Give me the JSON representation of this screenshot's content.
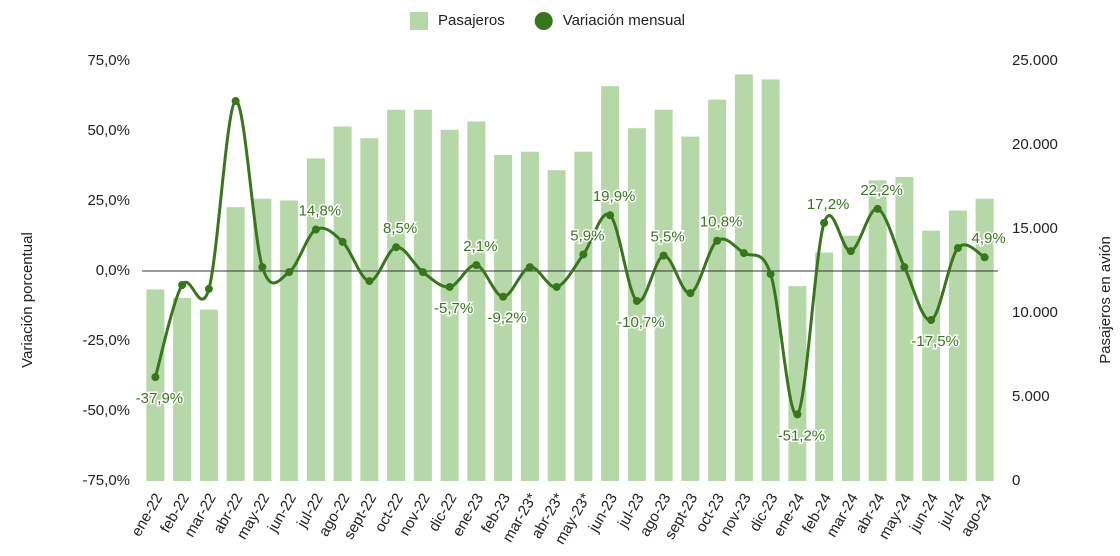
{
  "chart_data": {
    "type": "bar_line",
    "y_label": "Variación porcentual",
    "y2_label": "Pasajeros en avión",
    "categories": [
      "ene-22",
      "feb-22",
      "mar-22",
      "abr-22",
      "may-22",
      "jun-22",
      "jul-22",
      "ago-22",
      "sept-22",
      "oct-22",
      "nov-22",
      "dic-22",
      "ene-23",
      "feb-23",
      "mar-23*",
      "abr-23*",
      "may-23*",
      "jun-23",
      "jul-23",
      "ago-23",
      "sept-23",
      "oct-23",
      "nov-23",
      "dic-23",
      "ene-24",
      "feb-24",
      "mar-24",
      "abr-24",
      "may-24",
      "jun-24",
      "jul-24",
      "ago-24"
    ],
    "series": [
      {
        "name": "Pasajeros",
        "type": "bar",
        "axis": "y2",
        "color": "#b6d7a8",
        "values": [
          11400,
          10900,
          10200,
          16300,
          16800,
          16700,
          19200,
          21100,
          20400,
          22100,
          22100,
          20900,
          21400,
          19400,
          19600,
          18500,
          19600,
          23500,
          21000,
          22100,
          20500,
          22700,
          24200,
          23900,
          11600,
          13600,
          14600,
          17900,
          18100,
          14900,
          16100,
          16800
        ]
      },
      {
        "name": "Variación mensual",
        "type": "line",
        "axis": "y",
        "color": "#38761d",
        "values": [
          -37.9,
          -5.0,
          -6.4,
          60.7,
          1.4,
          -0.4,
          14.8,
          10.4,
          -3.6,
          8.5,
          -0.4,
          -5.7,
          2.1,
          -9.2,
          1.4,
          -5.7,
          5.9,
          19.9,
          -10.7,
          5.5,
          -7.9,
          10.8,
          6.4,
          -1.1,
          -51.2,
          17.2,
          7.1,
          22.2,
          1.4,
          -17.5,
          8.2,
          4.9
        ],
        "value_labels": [
          "-37,9%",
          null,
          null,
          null,
          null,
          null,
          "14,8%",
          null,
          null,
          "8,5%",
          null,
          "-5,7%",
          "2,1%",
          "-9,2%",
          null,
          null,
          "5,9%",
          "19,9%",
          "-10,7%",
          "5,5%",
          null,
          "10,8%",
          null,
          null,
          "-51,2%",
          "17,2%",
          null,
          "22,2%",
          null,
          "-17,5%",
          null,
          "4,9%"
        ]
      }
    ],
    "ylim": [
      -75,
      75
    ],
    "yticks": [
      {
        "value": -75,
        "label": "-75,0%"
      },
      {
        "value": -50,
        "label": "-50,0%"
      },
      {
        "value": -25,
        "label": "-25,0%"
      },
      {
        "value": 0,
        "label": "0,0%"
      },
      {
        "value": 25,
        "label": "25,0%"
      },
      {
        "value": 50,
        "label": "50,0%"
      },
      {
        "value": 75,
        "label": "75,0%"
      }
    ],
    "y2lim": [
      0,
      25000
    ],
    "y2ticks": [
      0,
      {
        "value": 5000,
        "label": "5.000"
      },
      {
        "value": 10000,
        "label": "10.000"
      },
      {
        "value": 15000,
        "label": "15.000"
      },
      {
        "value": 20000,
        "label": "20.000"
      },
      {
        "value": 25000,
        "label": "25.000"
      }
    ],
    "legend": "top"
  }
}
